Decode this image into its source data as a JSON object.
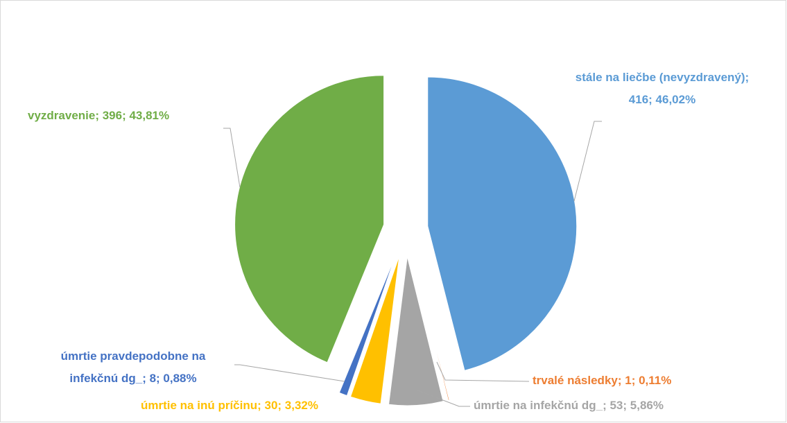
{
  "chart_data": {
    "type": "pie",
    "values": [
      416,
      1,
      53,
      30,
      8,
      396
    ],
    "value_labels": [
      [
        "stále na liečbe (nevyzdravený);",
        "416; 46,02%"
      ],
      [
        "trvalé následky; 1; 0,11%"
      ],
      [
        "úmrtie na infekčnú dg_; 53; 5,86%"
      ],
      [
        "úmrtie na inú príčinu; 30; 3,32%"
      ],
      [
        "úmrtie pravdepodobne na",
        "infekčnú dg_; 8; 0,88%"
      ],
      [
        "vyzdravenie; 396; 43,81%"
      ]
    ],
    "colors": [
      "#5b9bd5",
      "#ed7d31",
      "#a5a5a5",
      "#ffc000",
      "#4472c4",
      "#70ad47"
    ]
  }
}
